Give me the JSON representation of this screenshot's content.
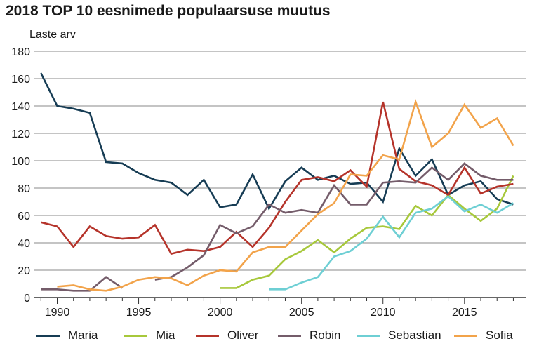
{
  "title": "2018 TOP 10 eesnimede populaarsuse muutus",
  "chart_data": {
    "type": "line",
    "title": "2018 TOP 10 eesnimede populaarsuse muutus",
    "ylabel": "Laste arv",
    "xlabel": "",
    "xlim": [
      1988.6,
      2018.8
    ],
    "ylim": [
      0,
      180
    ],
    "yticks": [
      0,
      20,
      40,
      60,
      80,
      100,
      120,
      140,
      160,
      180
    ],
    "xticks": [
      1990,
      1995,
      2000,
      2005,
      2010,
      2015
    ],
    "grid": "horizontal",
    "legend_position": "bottom",
    "series": [
      {
        "name": "Maria",
        "color": "#163c54",
        "x": [
          1989,
          1990,
          1991,
          1992,
          1993,
          1994,
          1995,
          1996,
          1997,
          1998,
          1999,
          2000,
          2001,
          2002,
          2003,
          2004,
          2005,
          2006,
          2007,
          2008,
          2009,
          2010,
          2011,
          2012,
          2013,
          2014,
          2015,
          2016,
          2017,
          2018
        ],
        "y": [
          164,
          140,
          138,
          135,
          99,
          98,
          91,
          86,
          84,
          75,
          86,
          66,
          68,
          90,
          65,
          85,
          95,
          86,
          89,
          83,
          84,
          70,
          109,
          89,
          101,
          75,
          82,
          85,
          72,
          68
        ]
      },
      {
        "name": "Mia",
        "color": "#a7c83b",
        "x": [
          2000,
          2001,
          2002,
          2003,
          2004,
          2005,
          2006,
          2007,
          2008,
          2009,
          2010,
          2011,
          2012,
          2013,
          2014,
          2015,
          2016,
          2017,
          2018
        ],
        "y": [
          7,
          7,
          13,
          16,
          28,
          34,
          42,
          33,
          43,
          51,
          52,
          50,
          67,
          60,
          75,
          65,
          56,
          65,
          89
        ]
      },
      {
        "name": "Oliver",
        "color": "#b5332a",
        "x": [
          1989,
          1990,
          1991,
          1992,
          1993,
          1994,
          1995,
          1996,
          1997,
          1998,
          1999,
          2000,
          2001,
          2002,
          2003,
          2004,
          2005,
          2006,
          2007,
          2008,
          2009,
          2010,
          2011,
          2012,
          2013,
          2014,
          2015,
          2016,
          2017,
          2018
        ],
        "y": [
          55,
          52,
          37,
          52,
          45,
          43,
          44,
          53,
          32,
          35,
          34,
          37,
          48,
          37,
          51,
          70,
          86,
          88,
          85,
          93,
          81,
          143,
          94,
          85,
          82,
          75,
          95,
          76,
          81,
          83
        ]
      },
      {
        "name": "Robin",
        "color": "#745c6a",
        "x": [
          1989,
          1990,
          1991,
          1992,
          1993,
          1994,
          null,
          1996,
          1997,
          1998,
          1999,
          2000,
          2001,
          2002,
          2003,
          2004,
          2005,
          2006,
          2007,
          2008,
          2009,
          2010,
          2011,
          2012,
          2013,
          2014,
          2015,
          2016,
          2017,
          2018
        ],
        "y": [
          6,
          6,
          5,
          5,
          15,
          7,
          null,
          13,
          15,
          22,
          31,
          53,
          47,
          52,
          68,
          62,
          64,
          62,
          82,
          68,
          68,
          84,
          85,
          84,
          95,
          86,
          98,
          89,
          86,
          86
        ]
      },
      {
        "name": "Sebastian",
        "color": "#6ecfd4",
        "x": [
          2003,
          2004,
          2005,
          2006,
          2007,
          2008,
          2009,
          2010,
          2011,
          2012,
          2013,
          2014,
          2015,
          2016,
          2017,
          2018
        ],
        "y": [
          6,
          6,
          11,
          15,
          30,
          34,
          43,
          59,
          44,
          62,
          65,
          74,
          63,
          68,
          62,
          69
        ]
      },
      {
        "name": "Sofia",
        "color": "#f2a34a",
        "x": [
          1990,
          1991,
          1992,
          1993,
          1994,
          1995,
          1996,
          1997,
          1998,
          1999,
          2000,
          2001,
          2002,
          2003,
          2004,
          2005,
          2006,
          2007,
          2008,
          2009,
          2010,
          2011,
          2012,
          2013,
          2014,
          2015,
          2016,
          2017,
          2018
        ],
        "y": [
          8,
          9,
          6,
          5,
          8,
          13,
          15,
          14,
          9,
          16,
          20,
          19,
          33,
          37,
          37,
          49,
          61,
          69,
          90,
          89,
          104,
          101,
          143,
          110,
          120,
          141,
          124,
          131,
          111
        ]
      }
    ]
  }
}
